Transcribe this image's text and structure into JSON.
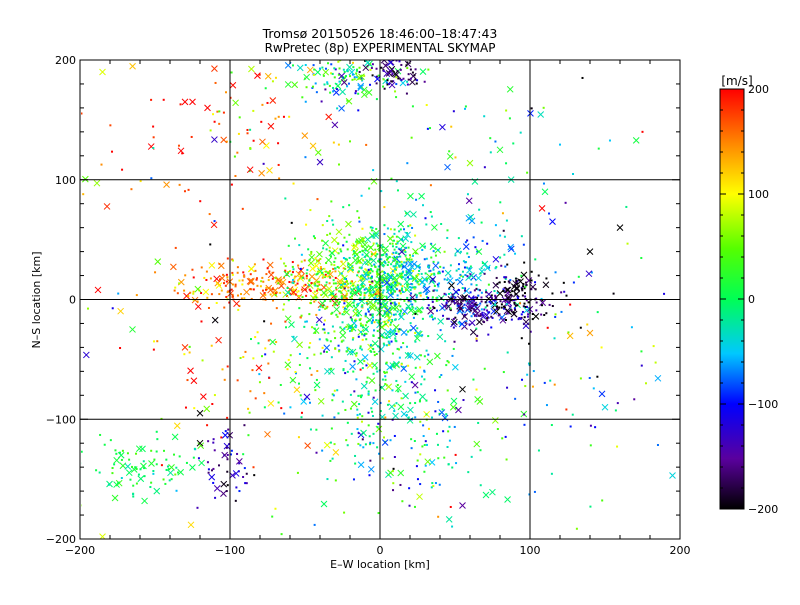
{
  "chart_data": {
    "type": "scatter",
    "title": "Tromsø 20150526 18:46:00–18:47:43",
    "subtitle": "RwPretec (8p) EXPERIMENTAL SKYMAP",
    "xlabel": "E–W location [km]",
    "ylabel": "N–S location [km]",
    "xlim": [
      -200,
      200
    ],
    "ylim": [
      -200,
      200
    ],
    "xticks": [
      -200,
      -100,
      0,
      100,
      200
    ],
    "yticks": [
      -200,
      -100,
      0,
      100,
      200
    ],
    "xtick_labels": [
      "−200",
      "−100",
      "0",
      "100",
      "200"
    ],
    "ytick_labels": [
      "−200",
      "−100",
      "0",
      "100",
      "200"
    ],
    "grid_lines": [
      -100,
      0,
      100
    ],
    "colorbar": {
      "label": "[m/s]",
      "min": -200,
      "max": 200,
      "ticks": [
        200,
        100,
        0,
        -100,
        -200
      ],
      "tick_labels": [
        "200",
        "100",
        "0",
        "−100",
        "−200"
      ],
      "colormap": "rainbow"
    },
    "marker_types": [
      "cross",
      "dot"
    ],
    "clusters": [
      {
        "cx": -70,
        "cy": 12,
        "sx": 35,
        "sy": 10,
        "n": 260,
        "v": 150,
        "dv": 40
      },
      {
        "cx": -20,
        "cy": 15,
        "sx": 22,
        "sy": 22,
        "n": 380,
        "v": 40,
        "dv": 40
      },
      {
        "cx": 5,
        "cy": 5,
        "sx": 15,
        "sy": 30,
        "n": 420,
        "v": 5,
        "dv": 40
      },
      {
        "cx": 40,
        "cy": 20,
        "sx": 25,
        "sy": 20,
        "n": 260,
        "v": -50,
        "dv": 30
      },
      {
        "cx": 70,
        "cy": -5,
        "sx": 20,
        "sy": 10,
        "n": 220,
        "v": -150,
        "dv": 35
      },
      {
        "cx": 95,
        "cy": 5,
        "sx": 10,
        "sy": 14,
        "n": 70,
        "v": -200,
        "dv": 10
      },
      {
        "cx": -10,
        "cy": -60,
        "sx": 30,
        "sy": 35,
        "n": 260,
        "v": -10,
        "dv": 50
      },
      {
        "cx": 20,
        "cy": -120,
        "sx": 30,
        "sy": 30,
        "n": 120,
        "v": -30,
        "dv": 60
      },
      {
        "cx": -20,
        "cy": 185,
        "sx": 20,
        "sy": 10,
        "n": 130,
        "v": -20,
        "dv": 60
      },
      {
        "cx": 10,
        "cy": 190,
        "sx": 10,
        "sy": 8,
        "n": 70,
        "v": -170,
        "dv": 30
      },
      {
        "cx": -90,
        "cy": 150,
        "sx": 30,
        "sy": 30,
        "n": 60,
        "v": 130,
        "dv": 60
      },
      {
        "cx": -160,
        "cy": -140,
        "sx": 20,
        "sy": 12,
        "n": 90,
        "v": 5,
        "dv": 20
      },
      {
        "cx": -105,
        "cy": -140,
        "sx": 10,
        "sy": 15,
        "n": 50,
        "v": -140,
        "dv": 30
      },
      {
        "cx": -90,
        "cy": -70,
        "sx": 30,
        "sy": 30,
        "n": 60,
        "v": 140,
        "dv": 50
      },
      {
        "cx": 110,
        "cy": -80,
        "sx": 40,
        "sy": 50,
        "n": 60,
        "v": -20,
        "dv": 80
      },
      {
        "cx": -130,
        "cy": 120,
        "sx": 40,
        "sy": 40,
        "n": 30,
        "v": 180,
        "dv": 30
      },
      {
        "cx": 60,
        "cy": 120,
        "sx": 40,
        "sy": 40,
        "n": 40,
        "v": -20,
        "dv": 70
      },
      {
        "cx": 0,
        "cy": 0,
        "sx": 120,
        "sy": 110,
        "n": 180,
        "v": 0,
        "dv": 120
      }
    ],
    "points": [
      {
        "x": -185,
        "y": 190,
        "v": 90,
        "m": "x"
      },
      {
        "x": -130,
        "y": 165,
        "v": 200,
        "m": "x"
      },
      {
        "x": -125,
        "y": 165,
        "v": 200,
        "m": "x"
      },
      {
        "x": -115,
        "y": 160,
        "v": 200,
        "m": "x"
      },
      {
        "x": -188,
        "y": 8,
        "v": 200,
        "m": "x"
      },
      {
        "x": 140,
        "y": 40,
        "v": -200,
        "m": "x"
      },
      {
        "x": 160,
        "y": 60,
        "v": -200,
        "m": "x"
      },
      {
        "x": 115,
        "y": 65,
        "v": -100,
        "m": "x"
      },
      {
        "x": 110,
        "y": 90,
        "v": 0,
        "m": "x"
      },
      {
        "x": 80,
        "y": 125,
        "v": 20,
        "m": "x"
      },
      {
        "x": 140,
        "y": -28,
        "v": 140,
        "m": "x"
      },
      {
        "x": 150,
        "y": -90,
        "v": -40,
        "m": "x"
      },
      {
        "x": 195,
        "y": -147,
        "v": -40,
        "m": "x"
      },
      {
        "x": -185,
        "y": -198,
        "v": 90,
        "m": "x"
      },
      {
        "x": 55,
        "y": -172,
        "v": -150,
        "m": "x"
      },
      {
        "x": -120,
        "y": -95,
        "v": -200,
        "m": "x"
      },
      {
        "x": -120,
        "y": -120,
        "v": -200,
        "m": "x"
      },
      {
        "x": -130,
        "y": -40,
        "v": 180,
        "m": "x"
      },
      {
        "x": -165,
        "y": -25,
        "v": 20,
        "m": "x"
      },
      {
        "x": 55,
        "y": -75,
        "v": -200,
        "m": "x"
      },
      {
        "x": 135,
        "y": 185,
        "v": -200,
        "m": "dot"
      },
      {
        "x": 175,
        "y": 140,
        "v": 200,
        "m": "dot"
      }
    ]
  }
}
